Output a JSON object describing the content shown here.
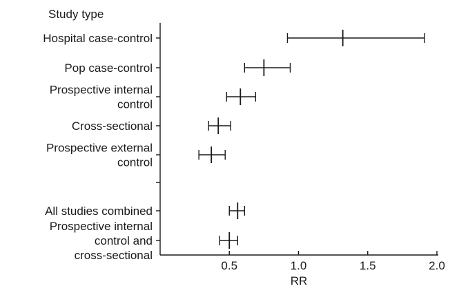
{
  "chart_data": {
    "type": "forest",
    "title": "",
    "category_header": "Study type",
    "xlabel": "RR",
    "xlim": [
      0.0,
      2.0
    ],
    "xticks": [
      0.5,
      1.0,
      1.5,
      2.0
    ],
    "xtick_labels": [
      "0.5",
      "1.0",
      "1.5",
      "2.0"
    ],
    "grid": false,
    "rows": [
      {
        "label": [
          "Hospital case-control"
        ],
        "estimate": 1.32,
        "lower": 0.92,
        "upper": 1.91
      },
      {
        "label": [
          "Pop case-control"
        ],
        "estimate": 0.75,
        "lower": 0.61,
        "upper": 0.94
      },
      {
        "label": [
          "Prospective internal",
          "control"
        ],
        "estimate": 0.58,
        "lower": 0.48,
        "upper": 0.69
      },
      {
        "label": [
          "Cross-sectional"
        ],
        "estimate": 0.42,
        "lower": 0.35,
        "upper": 0.51
      },
      {
        "label": [
          "Prospective external",
          "control"
        ],
        "estimate": 0.37,
        "lower": 0.28,
        "upper": 0.47
      },
      {
        "label": [],
        "estimate": null,
        "lower": null,
        "upper": null
      },
      {
        "label": [
          "All studies combined"
        ],
        "estimate": 0.56,
        "lower": 0.5,
        "upper": 0.61
      },
      {
        "label": [
          "Prospective internal",
          "control and",
          "cross-sectional"
        ],
        "estimate": 0.5,
        "lower": 0.43,
        "upper": 0.56
      }
    ]
  }
}
